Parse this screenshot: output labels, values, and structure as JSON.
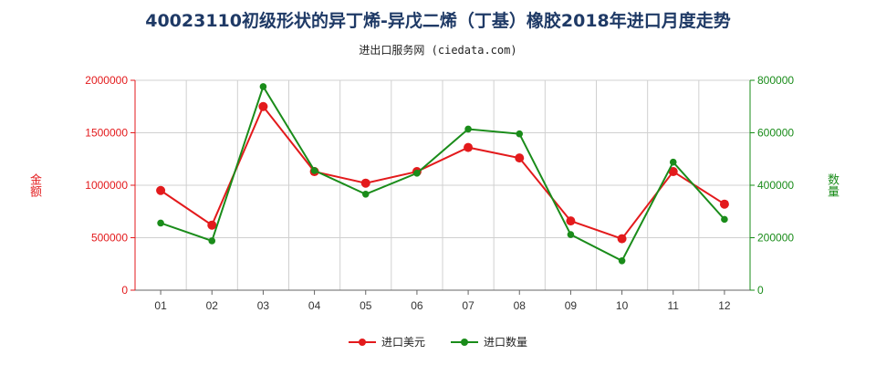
{
  "chart_data": {
    "type": "line",
    "title": "40023110初级形状的异丁烯-异戊二烯（丁基）橡胶2018年进口月度走势",
    "subtitle": "进出口服务网 (ciedata.com)",
    "categories": [
      "01",
      "02",
      "03",
      "04",
      "05",
      "06",
      "07",
      "08",
      "09",
      "10",
      "11",
      "12"
    ],
    "y_left": {
      "label": "金额",
      "min": 0,
      "max": 2000000,
      "ticks": [
        "0",
        "500000",
        "1000000",
        "1500000",
        "2000000"
      ]
    },
    "y_right": {
      "label": "数量",
      "min": 0,
      "max": 800000,
      "ticks": [
        "0",
        "200000",
        "400000",
        "600000",
        "800000"
      ]
    },
    "series": [
      {
        "name": "进口美元",
        "axis": "left",
        "color": "#e31a1c",
        "values": [
          950000,
          620000,
          1750000,
          1130000,
          1020000,
          1130000,
          1360000,
          1260000,
          660000,
          490000,
          1130000,
          820000
        ]
      },
      {
        "name": "进口数量",
        "axis": "right",
        "color": "#1a8c1a",
        "values": [
          256000,
          188000,
          776000,
          456000,
          366000,
          446000,
          614000,
          596000,
          212000,
          112000,
          488000,
          270000
        ]
      }
    ],
    "grid": true,
    "legend": "bottom-center"
  }
}
